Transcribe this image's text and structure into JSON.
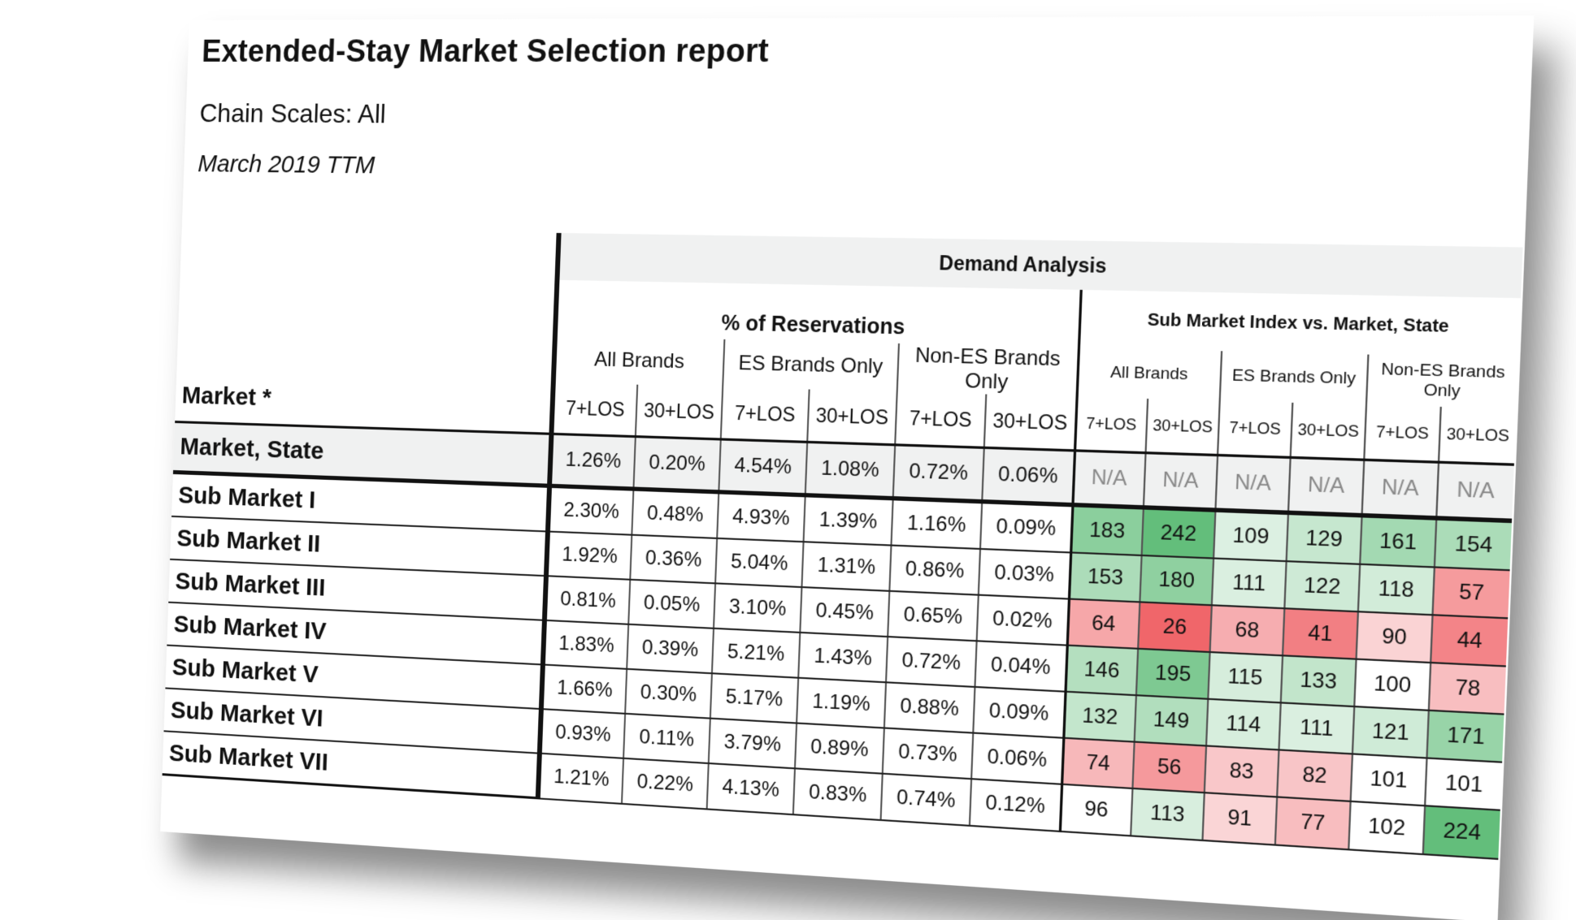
{
  "report": {
    "title": "Extended-Stay Market Selection report",
    "subtitle": "Chain Scales: All",
    "period": "March 2019 TTM"
  },
  "table": {
    "market_header": "Market *",
    "demand_header": "Demand Analysis",
    "pct_header": "% of Reservations",
    "index_header": "Sub Market Index vs. Market, State",
    "groups": [
      "All Brands",
      "ES Brands Only",
      "Non-ES Brands Only"
    ],
    "los": [
      "7+LOS",
      "30+LOS"
    ],
    "market_row": {
      "name": "Market, State",
      "pct": [
        "1.26%",
        "0.20%",
        "4.54%",
        "1.08%",
        "0.72%",
        "0.06%"
      ],
      "idx": [
        "N/A",
        "N/A",
        "N/A",
        "N/A",
        "N/A",
        "N/A"
      ]
    },
    "rows": [
      {
        "name": "Sub Market I",
        "pct": [
          "2.30%",
          "0.48%",
          "4.93%",
          "1.39%",
          "1.16%",
          "0.09%"
        ],
        "idx": [
          183,
          242,
          109,
          129,
          161,
          154
        ]
      },
      {
        "name": "Sub Market II",
        "pct": [
          "1.92%",
          "0.36%",
          "5.04%",
          "1.31%",
          "0.86%",
          "0.03%"
        ],
        "idx": [
          153,
          180,
          111,
          122,
          118,
          57
        ]
      },
      {
        "name": "Sub Market III",
        "pct": [
          "0.81%",
          "0.05%",
          "3.10%",
          "0.45%",
          "0.65%",
          "0.02%"
        ],
        "idx": [
          64,
          26,
          68,
          41,
          90,
          44
        ]
      },
      {
        "name": "Sub Market IV",
        "pct": [
          "1.83%",
          "0.39%",
          "5.21%",
          "1.43%",
          "0.72%",
          "0.04%"
        ],
        "idx": [
          146,
          195,
          115,
          133,
          100,
          78
        ]
      },
      {
        "name": "Sub Market V",
        "pct": [
          "1.66%",
          "0.30%",
          "5.17%",
          "1.19%",
          "0.88%",
          "0.09%"
        ],
        "idx": [
          132,
          149,
          114,
          111,
          121,
          171
        ]
      },
      {
        "name": "Sub Market VI",
        "pct": [
          "0.93%",
          "0.11%",
          "3.79%",
          "0.89%",
          "0.73%",
          "0.06%"
        ],
        "idx": [
          74,
          56,
          83,
          82,
          101,
          101
        ]
      },
      {
        "name": "Sub Market VII",
        "pct": [
          "1.21%",
          "0.22%",
          "4.13%",
          "0.83%",
          "0.74%",
          "0.12%"
        ],
        "idx": [
          96,
          113,
          91,
          77,
          102,
          224
        ]
      }
    ]
  },
  "colors": {
    "high_strong": "#63be7b",
    "high_light": "#e6f4ea",
    "neutral": "#ffffff",
    "low_light": "#fbe4e5",
    "low_strong": "#f06468"
  }
}
